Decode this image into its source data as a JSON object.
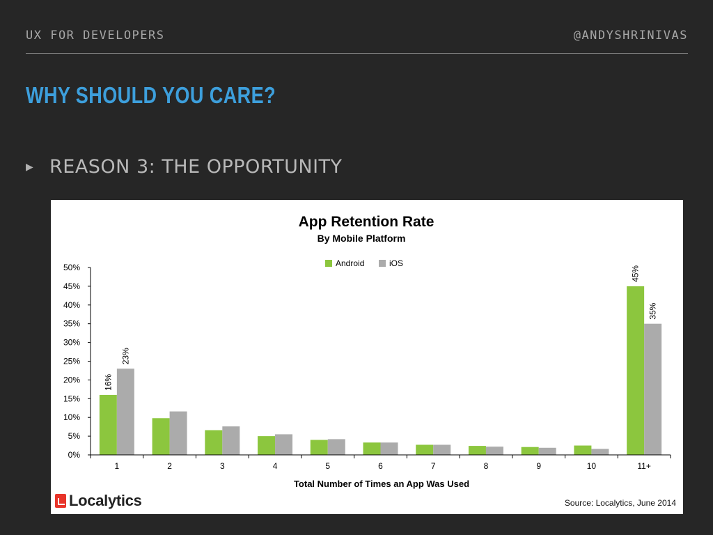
{
  "header": {
    "left": "UX FOR DEVELOPERS",
    "right": "@ANDYSHRINIVAS"
  },
  "slide": {
    "title": "WHY SHOULD YOU CARE?",
    "bullet_marker": "▶",
    "bullet": "REASON 3: THE OPPORTUNITY"
  },
  "colors": {
    "android": "#8cc63e",
    "ios": "#ababab",
    "title": "#3d9fdc"
  },
  "logo": {
    "text": "Localytics",
    "icon": "localytics-logo-icon"
  },
  "source": "Source: Localytics, June 2014",
  "chart_data": {
    "type": "bar",
    "title": "App Retention Rate",
    "subtitle": "By Mobile Platform",
    "xlabel": "Total Number of Times an App Was Used",
    "ylabel": "",
    "categories": [
      "1",
      "2",
      "3",
      "4",
      "5",
      "6",
      "7",
      "8",
      "9",
      "10",
      "11+"
    ],
    "series": [
      {
        "name": "Android",
        "values": [
          16,
          9.8,
          6.6,
          5,
          4,
          3.3,
          2.7,
          2.4,
          2.1,
          2.5,
          45
        ]
      },
      {
        "name": "iOS",
        "values": [
          23,
          11.6,
          7.6,
          5.5,
          4.2,
          3.3,
          2.7,
          2.2,
          1.9,
          1.6,
          35
        ]
      }
    ],
    "data_labels": [
      {
        "category": "1",
        "series": "Android",
        "text": "16%"
      },
      {
        "category": "1",
        "series": "iOS",
        "text": "23%"
      },
      {
        "category": "11+",
        "series": "Android",
        "text": "45%"
      },
      {
        "category": "11+",
        "series": "iOS",
        "text": "35%"
      }
    ],
    "yticks": [
      "0%",
      "5%",
      "10%",
      "15%",
      "20%",
      "25%",
      "30%",
      "35%",
      "40%",
      "45%",
      "50%"
    ],
    "ylim": [
      0,
      50
    ],
    "legend_position": "top-center",
    "grid": false
  }
}
